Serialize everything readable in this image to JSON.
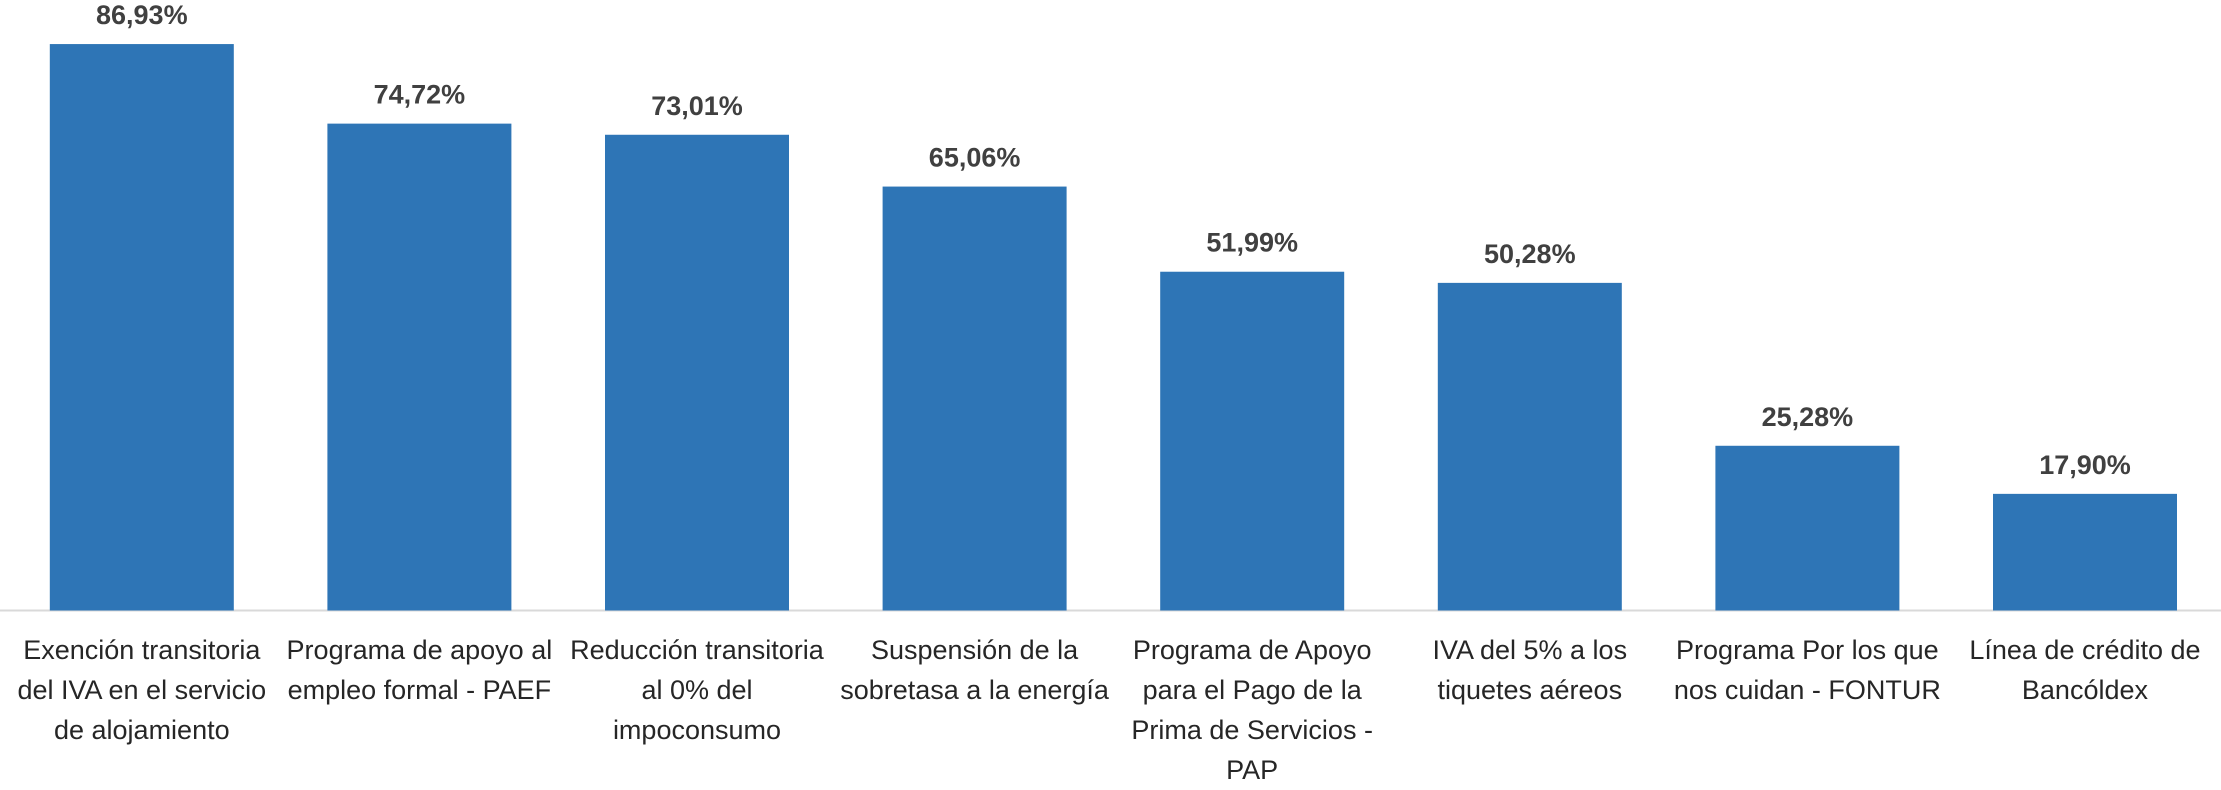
{
  "chart_data": {
    "type": "bar",
    "categories": [
      "Exención transitoria del IVA en el servicio de alojamiento",
      "Programa de apoyo al empleo formal - PAEF",
      "Reducción transitoria al 0% del impoconsumo",
      "Suspensión de la sobretasa a la energía",
      "Programa de Apoyo para el Pago de la Prima de Servicios - PAP",
      "IVA del 5% a los tiquetes aéreos",
      "Programa Por los que nos cuidan - FONTUR",
      "Línea de crédito de Bancóldex"
    ],
    "values": [
      86.93,
      74.72,
      73.01,
      65.06,
      51.99,
      50.28,
      25.28,
      17.9
    ],
    "value_labels": [
      "86,93%",
      "74,72%",
      "73,01%",
      "65,06%",
      "51,99%",
      "50,28%",
      "25,28%",
      "17,90%"
    ],
    "color": "#2e75b6"
  }
}
